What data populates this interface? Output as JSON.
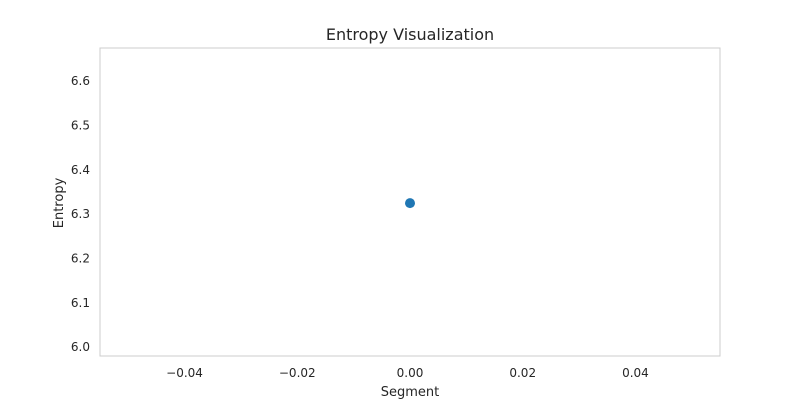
{
  "chart_data": {
    "type": "scatter",
    "title": "Entropy Visualization",
    "xlabel": "Segment",
    "ylabel": "Entropy",
    "xlim": [
      -0.055,
      0.055
    ],
    "ylim": [
      5.98,
      6.675
    ],
    "xticks": [
      -0.04,
      -0.02,
      0.0,
      0.02,
      0.04
    ],
    "xtick_labels": [
      "−0.04",
      "−0.02",
      "0.00",
      "0.02",
      "0.04"
    ],
    "yticks": [
      6.0,
      6.1,
      6.2,
      6.3,
      6.4,
      6.5,
      6.6
    ],
    "ytick_labels": [
      "6.0",
      "6.1",
      "6.2",
      "6.3",
      "6.4",
      "6.5",
      "6.6"
    ],
    "grid": false,
    "series": [
      {
        "color": "#1f77b4",
        "points": [
          {
            "x": 0.0,
            "y": 6.325
          }
        ]
      }
    ]
  }
}
